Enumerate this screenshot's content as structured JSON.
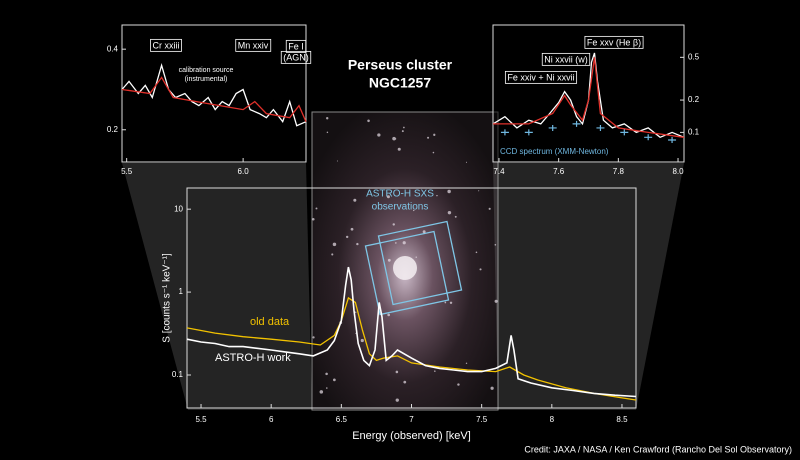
{
  "title": [
    "Perseus cluster",
    "NGC1257"
  ],
  "sxs_label": [
    "ASTRO-H SXS",
    "observations"
  ],
  "credit": "Credit: JAXA / NASA / Ken Crawford (Rancho Del Sol Observatory)",
  "chart_data": [
    {
      "type": "line",
      "x_label": "Energy (observed) [keV]",
      "y_label": "S [counts s⁻¹ keV⁻¹]",
      "xlim": [
        5.4,
        8.6
      ],
      "ylim": [
        0.04,
        18
      ],
      "ylog": true,
      "xticks": [
        5.5,
        6,
        6.5,
        7,
        7.5,
        8,
        8.5
      ],
      "yticks": [
        0.1,
        1,
        10
      ],
      "series": [
        {
          "name": "old data",
          "color": "#f2c200",
          "x": [
            5.4,
            5.6,
            5.8,
            6.0,
            6.2,
            6.35,
            6.45,
            6.5,
            6.55,
            6.6,
            6.65,
            6.7,
            6.75,
            6.8,
            6.9,
            7.0,
            7.2,
            7.4,
            7.6,
            7.7,
            7.8,
            7.9,
            8.1,
            8.3,
            8.5,
            8.6
          ],
          "values": [
            0.37,
            0.32,
            0.29,
            0.27,
            0.25,
            0.23,
            0.3,
            0.45,
            0.85,
            0.75,
            0.35,
            0.18,
            0.15,
            0.16,
            0.17,
            0.14,
            0.125,
            0.115,
            0.11,
            0.125,
            0.1,
            0.087,
            0.07,
            0.06,
            0.053,
            0.05
          ]
        },
        {
          "name": "ASTRO-H work",
          "color": "#ffffff",
          "x": [
            5.4,
            5.5,
            5.6,
            5.7,
            5.8,
            5.9,
            6.0,
            6.1,
            6.2,
            6.3,
            6.4,
            6.45,
            6.5,
            6.53,
            6.55,
            6.57,
            6.59,
            6.62,
            6.66,
            6.7,
            6.74,
            6.77,
            6.79,
            6.82,
            6.86,
            6.9,
            7.0,
            7.1,
            7.2,
            7.3,
            7.4,
            7.5,
            7.6,
            7.68,
            7.71,
            7.73,
            7.76,
            7.85,
            8.0,
            8.15,
            8.3,
            8.45,
            8.6
          ],
          "values": [
            0.27,
            0.25,
            0.24,
            0.22,
            0.22,
            0.21,
            0.2,
            0.19,
            0.18,
            0.17,
            0.2,
            0.26,
            0.45,
            1.2,
            2.0,
            1.4,
            0.6,
            0.24,
            0.15,
            0.13,
            0.2,
            0.75,
            0.5,
            0.15,
            0.17,
            0.2,
            0.16,
            0.13,
            0.12,
            0.115,
            0.11,
            0.11,
            0.12,
            0.14,
            0.3,
            0.2,
            0.09,
            0.08,
            0.07,
            0.065,
            0.06,
            0.057,
            0.055
          ]
        }
      ]
    },
    {
      "type": "line",
      "xlim": [
        5.48,
        6.27
      ],
      "ylim": [
        0.12,
        0.46
      ],
      "xticks": [
        5.5,
        {
          "value": 6,
          "label": "6.0"
        }
      ],
      "yticks": [
        0.2,
        0.4
      ],
      "series": [
        {
          "color": "#ffffff",
          "x": [
            5.48,
            5.51,
            5.55,
            5.58,
            5.61,
            5.65,
            5.68,
            5.71,
            5.75,
            5.78,
            5.81,
            5.85,
            5.88,
            5.91,
            5.94,
            5.97,
            6.0,
            6.03,
            6.07,
            6.1,
            6.13,
            6.17,
            6.2,
            6.23,
            6.27
          ],
          "values": [
            0.3,
            0.32,
            0.29,
            0.31,
            0.28,
            0.36,
            0.3,
            0.28,
            0.29,
            0.27,
            0.26,
            0.28,
            0.25,
            0.27,
            0.26,
            0.29,
            0.3,
            0.25,
            0.24,
            0.23,
            0.25,
            0.22,
            0.27,
            0.21,
            0.22
          ]
        },
        {
          "color": "#e0302a",
          "x": [
            5.48,
            5.6,
            5.65,
            5.7,
            5.8,
            5.9,
            6.0,
            6.05,
            6.1,
            6.2,
            6.24,
            6.27
          ],
          "values": [
            0.3,
            0.29,
            0.33,
            0.28,
            0.27,
            0.26,
            0.25,
            0.27,
            0.24,
            0.23,
            0.26,
            0.22
          ]
        }
      ],
      "annotations": [
        "Cr xxiii",
        "calibration source",
        "(instrumental)",
        "Mn xxiv",
        "Fe I",
        "(AGN)"
      ]
    },
    {
      "type": "line",
      "xlim": [
        7.38,
        8.02
      ],
      "ylim": [
        0.053,
        1
      ],
      "ylog": true,
      "xticks": [
        7.4,
        7.6,
        7.8,
        {
          "value": 8,
          "label": "8.0"
        }
      ],
      "yticks": [
        0.1,
        0.2,
        0.5
      ],
      "series": [
        {
          "color": "#ffffff",
          "x": [
            7.38,
            7.42,
            7.46,
            7.5,
            7.54,
            7.57,
            7.6,
            7.62,
            7.64,
            7.66,
            7.68,
            7.7,
            7.71,
            7.72,
            7.73,
            7.75,
            7.78,
            7.82,
            7.86,
            7.9,
            7.94,
            7.98,
            8.02
          ],
          "values": [
            0.12,
            0.14,
            0.11,
            0.13,
            0.12,
            0.15,
            0.19,
            0.24,
            0.2,
            0.14,
            0.12,
            0.2,
            0.45,
            0.55,
            0.3,
            0.13,
            0.11,
            0.12,
            0.1,
            0.11,
            0.09,
            0.1,
            0.09
          ]
        },
        {
          "color": "#e0302a",
          "x": [
            7.38,
            7.5,
            7.58,
            7.62,
            7.64,
            7.68,
            7.7,
            7.72,
            7.74,
            7.8,
            7.9,
            8.02
          ],
          "values": [
            0.12,
            0.12,
            0.15,
            0.22,
            0.18,
            0.13,
            0.2,
            0.5,
            0.15,
            0.11,
            0.1,
            0.09
          ]
        },
        {
          "name": "CCD spectrum (XMM-Newton)",
          "color": "#6fb7e0",
          "marker": "cross",
          "x": [
            7.42,
            7.5,
            7.58,
            7.66,
            7.74,
            7.82,
            7.9,
            7.98
          ],
          "values": [
            0.1,
            0.1,
            0.11,
            0.12,
            0.11,
            0.1,
            0.09,
            0.085
          ]
        }
      ],
      "annotations": [
        "Fe xxv (He β)",
        "Ni xxvii (w)",
        "Fe xxiv + Ni xxvii"
      ]
    }
  ]
}
